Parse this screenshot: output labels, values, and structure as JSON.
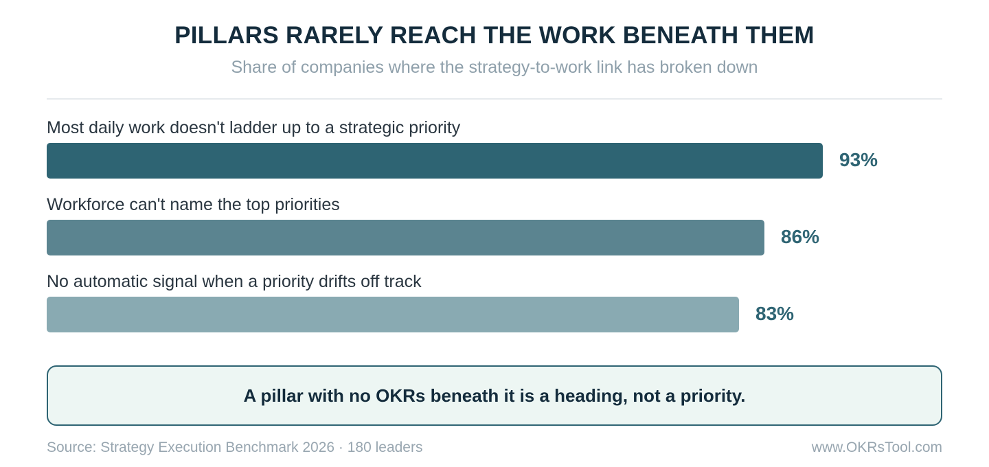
{
  "header": {
    "title": "PILLARS RARELY REACH THE WORK BENEATH THEM",
    "subtitle": "Share of companies where the strategy-to-work link has broken down"
  },
  "chart_data": {
    "type": "bar",
    "orientation": "horizontal",
    "categories": [
      "Most daily work doesn't ladder up to a strategic priority",
      "Workforce can't name the top priorities",
      "No automatic signal when a priority drifts off track"
    ],
    "values": [
      93,
      86,
      83
    ],
    "value_labels": [
      "93%",
      "86%",
      "83%"
    ],
    "bar_colors": [
      "#2e6473",
      "#5b8490",
      "#89aab2"
    ],
    "xlim": [
      0,
      100
    ],
    "grid": false,
    "legend": "none"
  },
  "callout": {
    "text": "A pillar with no OKRs beneath it is a heading, not a priority."
  },
  "footer": {
    "source": "Source: Strategy Execution Benchmark 2026 · 180 leaders",
    "site": "www.OKRsTool.com"
  }
}
